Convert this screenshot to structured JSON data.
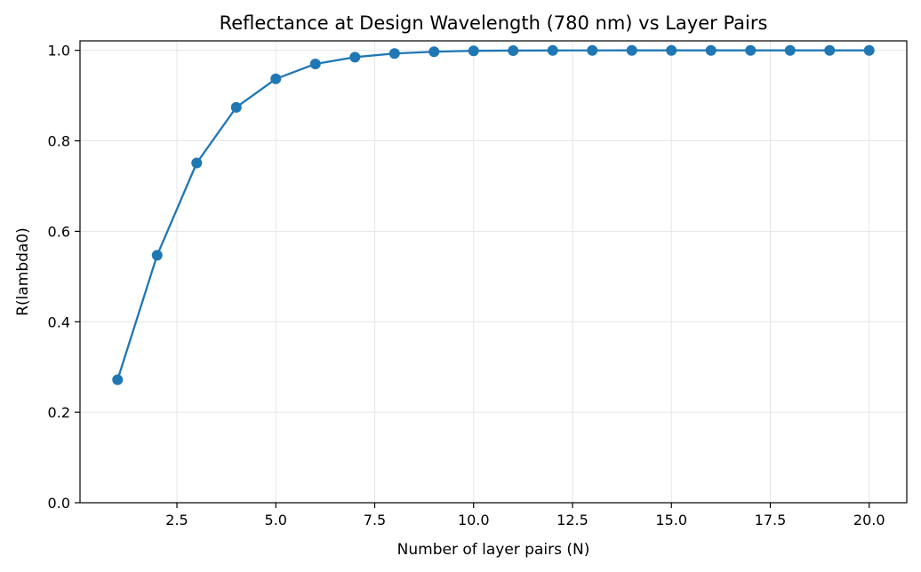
{
  "chart_data": {
    "type": "line",
    "title": "Reflectance at Design Wavelength (780 nm) vs Layer Pairs",
    "xlabel": "Number of layer pairs (N)",
    "ylabel": "R(lambda0)",
    "xlim": [
      0.05,
      20.95
    ],
    "ylim": [
      0.0,
      1.021
    ],
    "grid": true,
    "marker": "circle",
    "color": "#1f77b4",
    "xticks": [
      2.5,
      5.0,
      7.5,
      10.0,
      12.5,
      15.0,
      17.5,
      20.0
    ],
    "xtick_labels": [
      "2.5",
      "5.0",
      "7.5",
      "10.0",
      "12.5",
      "15.0",
      "17.5",
      "20.0"
    ],
    "yticks": [
      0.0,
      0.2,
      0.4,
      0.6,
      0.8,
      1.0
    ],
    "ytick_labels": [
      "0.0",
      "0.2",
      "0.4",
      "0.6",
      "0.8",
      "1.0"
    ],
    "series": [
      {
        "x": [
          1,
          2,
          3,
          4,
          5,
          6,
          7,
          8,
          9,
          10,
          11,
          12,
          13,
          14,
          15,
          16,
          17,
          18,
          19,
          20
        ],
        "values": [
          0.272,
          0.547,
          0.751,
          0.874,
          0.937,
          0.97,
          0.985,
          0.993,
          0.997,
          0.999,
          0.9995,
          0.9998,
          0.9999,
          1.0,
          1.0,
          1.0,
          1.0,
          1.0,
          1.0,
          1.0
        ]
      }
    ]
  }
}
